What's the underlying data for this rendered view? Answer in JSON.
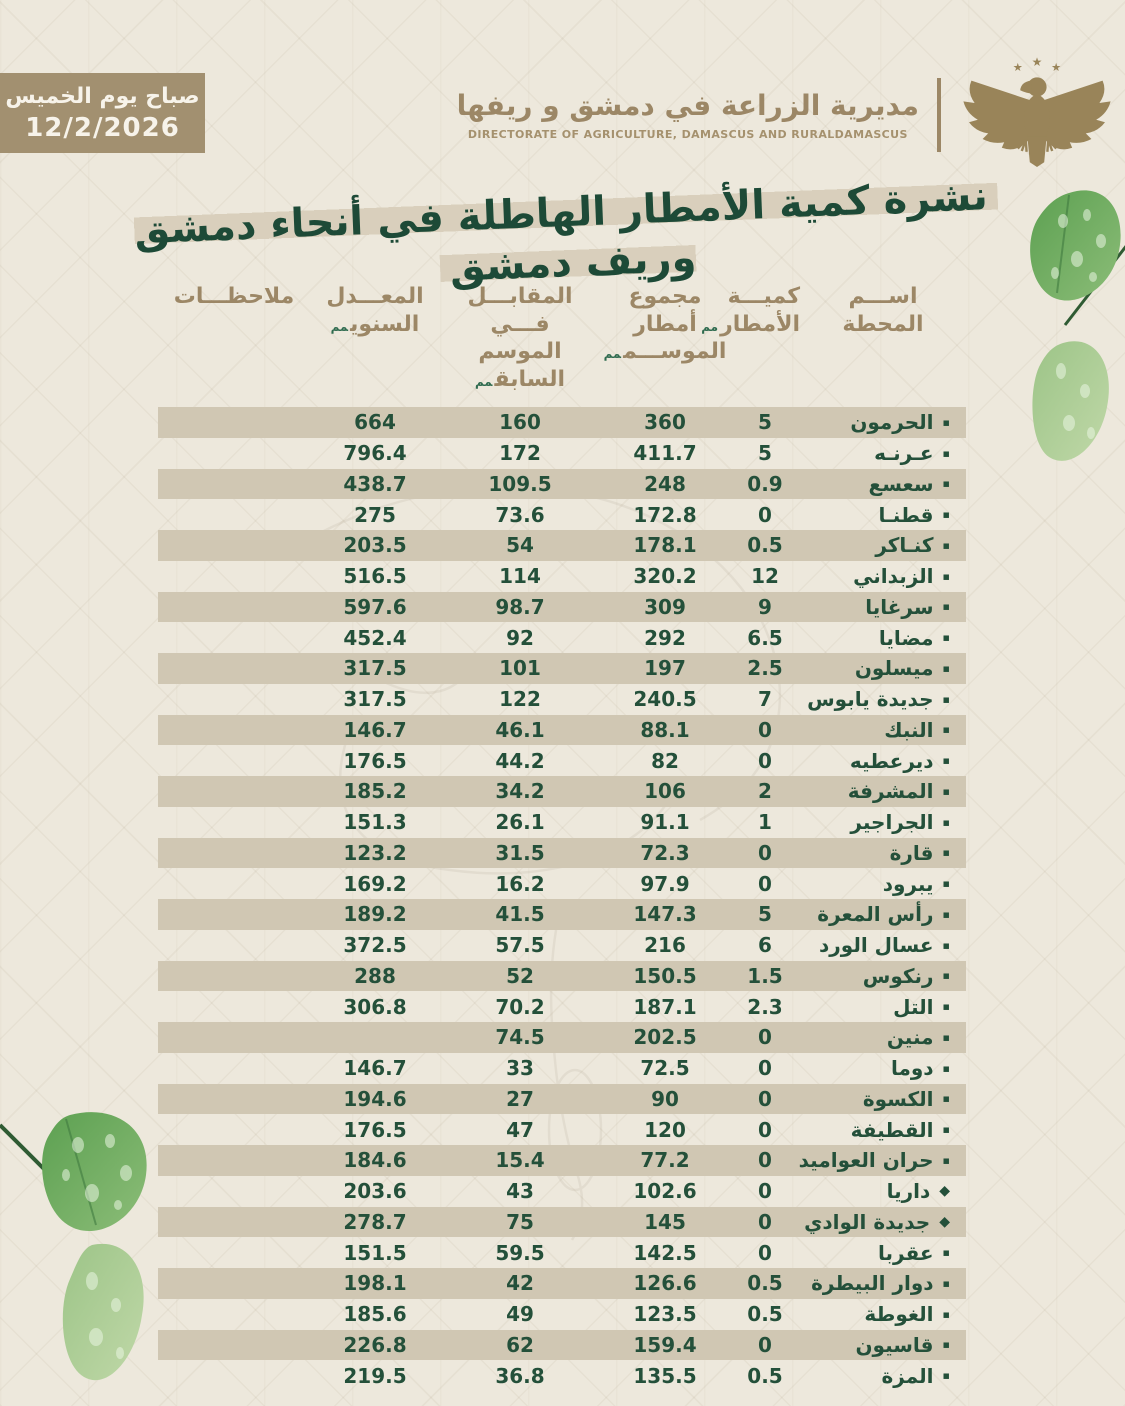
{
  "badge": {
    "line1": "صباح يوم الخميس",
    "line2": "12/2/2026"
  },
  "org": {
    "name_ar": "مديرية الزراعة في دمشق و ريفها",
    "name_en": "DIRECTORATE OF AGRICULTURE, DAMASCUS AND RURALDAMASCUS"
  },
  "title": "نشرة كمية الأمطار الهاطلة في أنحاء دمشق وريف دمشق",
  "colors": {
    "background": "#ede8dc",
    "badge": "#a29070",
    "header_tan": "#9c8766",
    "title_green": "#1d4a37",
    "value_green": "#24503a",
    "row_band": "#d0c7b3",
    "eagle_gold": "#998459",
    "unit_green": "#2f6b4f"
  },
  "table": {
    "headers": {
      "station": [
        "اســـم",
        "المحطة"
      ],
      "amount": [
        "كميـــة",
        "الأمطار"
      ],
      "season": [
        "مجموع أمطار",
        "الموســـم"
      ],
      "previous": [
        "المقابـــل فـــي",
        "الموسم السابق"
      ],
      "annual": [
        "المعـــدل",
        "السنوي"
      ],
      "notes": "ملاحظـــات",
      "unit": "مم"
    },
    "rows": [
      {
        "name": "الحرمون",
        "bullet": "square",
        "amount": "5",
        "season": "360",
        "previous": "160",
        "annual": "664",
        "notes": ""
      },
      {
        "name": "عـرنـه",
        "bullet": "square",
        "amount": "5",
        "season": "411.7",
        "previous": "172",
        "annual": "796.4",
        "notes": ""
      },
      {
        "name": "سعسع",
        "bullet": "square",
        "amount": "0.9",
        "season": "248",
        "previous": "109.5",
        "annual": "438.7",
        "notes": ""
      },
      {
        "name": "قطنـا",
        "bullet": "square",
        "amount": "0",
        "season": "172.8",
        "previous": "73.6",
        "annual": "275",
        "notes": ""
      },
      {
        "name": "كنـاكر",
        "bullet": "square",
        "amount": "0.5",
        "season": "178.1",
        "previous": "54",
        "annual": "203.5",
        "notes": ""
      },
      {
        "name": "الزبداني",
        "bullet": "square",
        "amount": "12",
        "season": "320.2",
        "previous": "114",
        "annual": "516.5",
        "notes": ""
      },
      {
        "name": "سرغايا",
        "bullet": "square",
        "amount": "9",
        "season": "309",
        "previous": "98.7",
        "annual": "597.6",
        "notes": ""
      },
      {
        "name": "مضايا",
        "bullet": "square",
        "amount": "6.5",
        "season": "292",
        "previous": "92",
        "annual": "452.4",
        "notes": ""
      },
      {
        "name": "ميسلون",
        "bullet": "square",
        "amount": "2.5",
        "season": "197",
        "previous": "101",
        "annual": "317.5",
        "notes": ""
      },
      {
        "name": "جديدة يابوس",
        "bullet": "square",
        "amount": "7",
        "season": "240.5",
        "previous": "122",
        "annual": "317.5",
        "notes": ""
      },
      {
        "name": "النبك",
        "bullet": "square",
        "amount": "0",
        "season": "88.1",
        "previous": "46.1",
        "annual": "146.7",
        "notes": ""
      },
      {
        "name": "ديرعطيه",
        "bullet": "square",
        "amount": "0",
        "season": "82",
        "previous": "44.2",
        "annual": "176.5",
        "notes": ""
      },
      {
        "name": "المشرفة",
        "bullet": "square",
        "amount": "2",
        "season": "106",
        "previous": "34.2",
        "annual": "185.2",
        "notes": ""
      },
      {
        "name": "الجراجير",
        "bullet": "square",
        "amount": "1",
        "season": "91.1",
        "previous": "26.1",
        "annual": "151.3",
        "notes": ""
      },
      {
        "name": "قارة",
        "bullet": "square",
        "amount": "0",
        "season": "72.3",
        "previous": "31.5",
        "annual": "123.2",
        "notes": ""
      },
      {
        "name": "يبرود",
        "bullet": "square",
        "amount": "0",
        "season": "97.9",
        "previous": "16.2",
        "annual": "169.2",
        "notes": ""
      },
      {
        "name": "رأس المعرة",
        "bullet": "square",
        "amount": "5",
        "season": "147.3",
        "previous": "41.5",
        "annual": "189.2",
        "notes": ""
      },
      {
        "name": "عسال الورد",
        "bullet": "square",
        "amount": "6",
        "season": "216",
        "previous": "57.5",
        "annual": "372.5",
        "notes": ""
      },
      {
        "name": "رنكوس",
        "bullet": "square",
        "amount": "1.5",
        "season": "150.5",
        "previous": "52",
        "annual": "288",
        "notes": ""
      },
      {
        "name": "التل",
        "bullet": "square",
        "amount": "2.3",
        "season": "187.1",
        "previous": "70.2",
        "annual": "306.8",
        "notes": ""
      },
      {
        "name": "منين",
        "bullet": "square",
        "amount": "0",
        "season": "202.5",
        "previous": "74.5",
        "annual": "",
        "notes": ""
      },
      {
        "name": "دوما",
        "bullet": "square",
        "amount": "0",
        "season": "72.5",
        "previous": "33",
        "annual": "146.7",
        "notes": ""
      },
      {
        "name": "الكسوة",
        "bullet": "square",
        "amount": "0",
        "season": "90",
        "previous": "27",
        "annual": "194.6",
        "notes": ""
      },
      {
        "name": "القطيفة",
        "bullet": "square",
        "amount": "0",
        "season": "120",
        "previous": "47",
        "annual": "176.5",
        "notes": ""
      },
      {
        "name": "حران العواميد",
        "bullet": "square",
        "amount": "0",
        "season": "77.2",
        "previous": "15.4",
        "annual": "184.6",
        "notes": ""
      },
      {
        "name": "داريا",
        "bullet": "diamond",
        "amount": "0",
        "season": "102.6",
        "previous": "43",
        "annual": "203.6",
        "notes": ""
      },
      {
        "name": "جديدة الوادي",
        "bullet": "diamond",
        "amount": "0",
        "season": "145",
        "previous": "75",
        "annual": "278.7",
        "notes": ""
      },
      {
        "name": "عقربا",
        "bullet": "square",
        "amount": "0",
        "season": "142.5",
        "previous": "59.5",
        "annual": "151.5",
        "notes": ""
      },
      {
        "name": "دوار البيطرة",
        "bullet": "square",
        "amount": "0.5",
        "season": "126.6",
        "previous": "42",
        "annual": "198.1",
        "notes": ""
      },
      {
        "name": "الغوطة",
        "bullet": "square",
        "amount": "0.5",
        "season": "123.5",
        "previous": "49",
        "annual": "185.6",
        "notes": ""
      },
      {
        "name": "قاسيون",
        "bullet": "square",
        "amount": "0",
        "season": "159.4",
        "previous": "62",
        "annual": "226.8",
        "notes": ""
      },
      {
        "name": "المزة",
        "bullet": "square",
        "amount": "0.5",
        "season": "135.5",
        "previous": "36.8",
        "annual": "219.5",
        "notes": ""
      }
    ]
  }
}
